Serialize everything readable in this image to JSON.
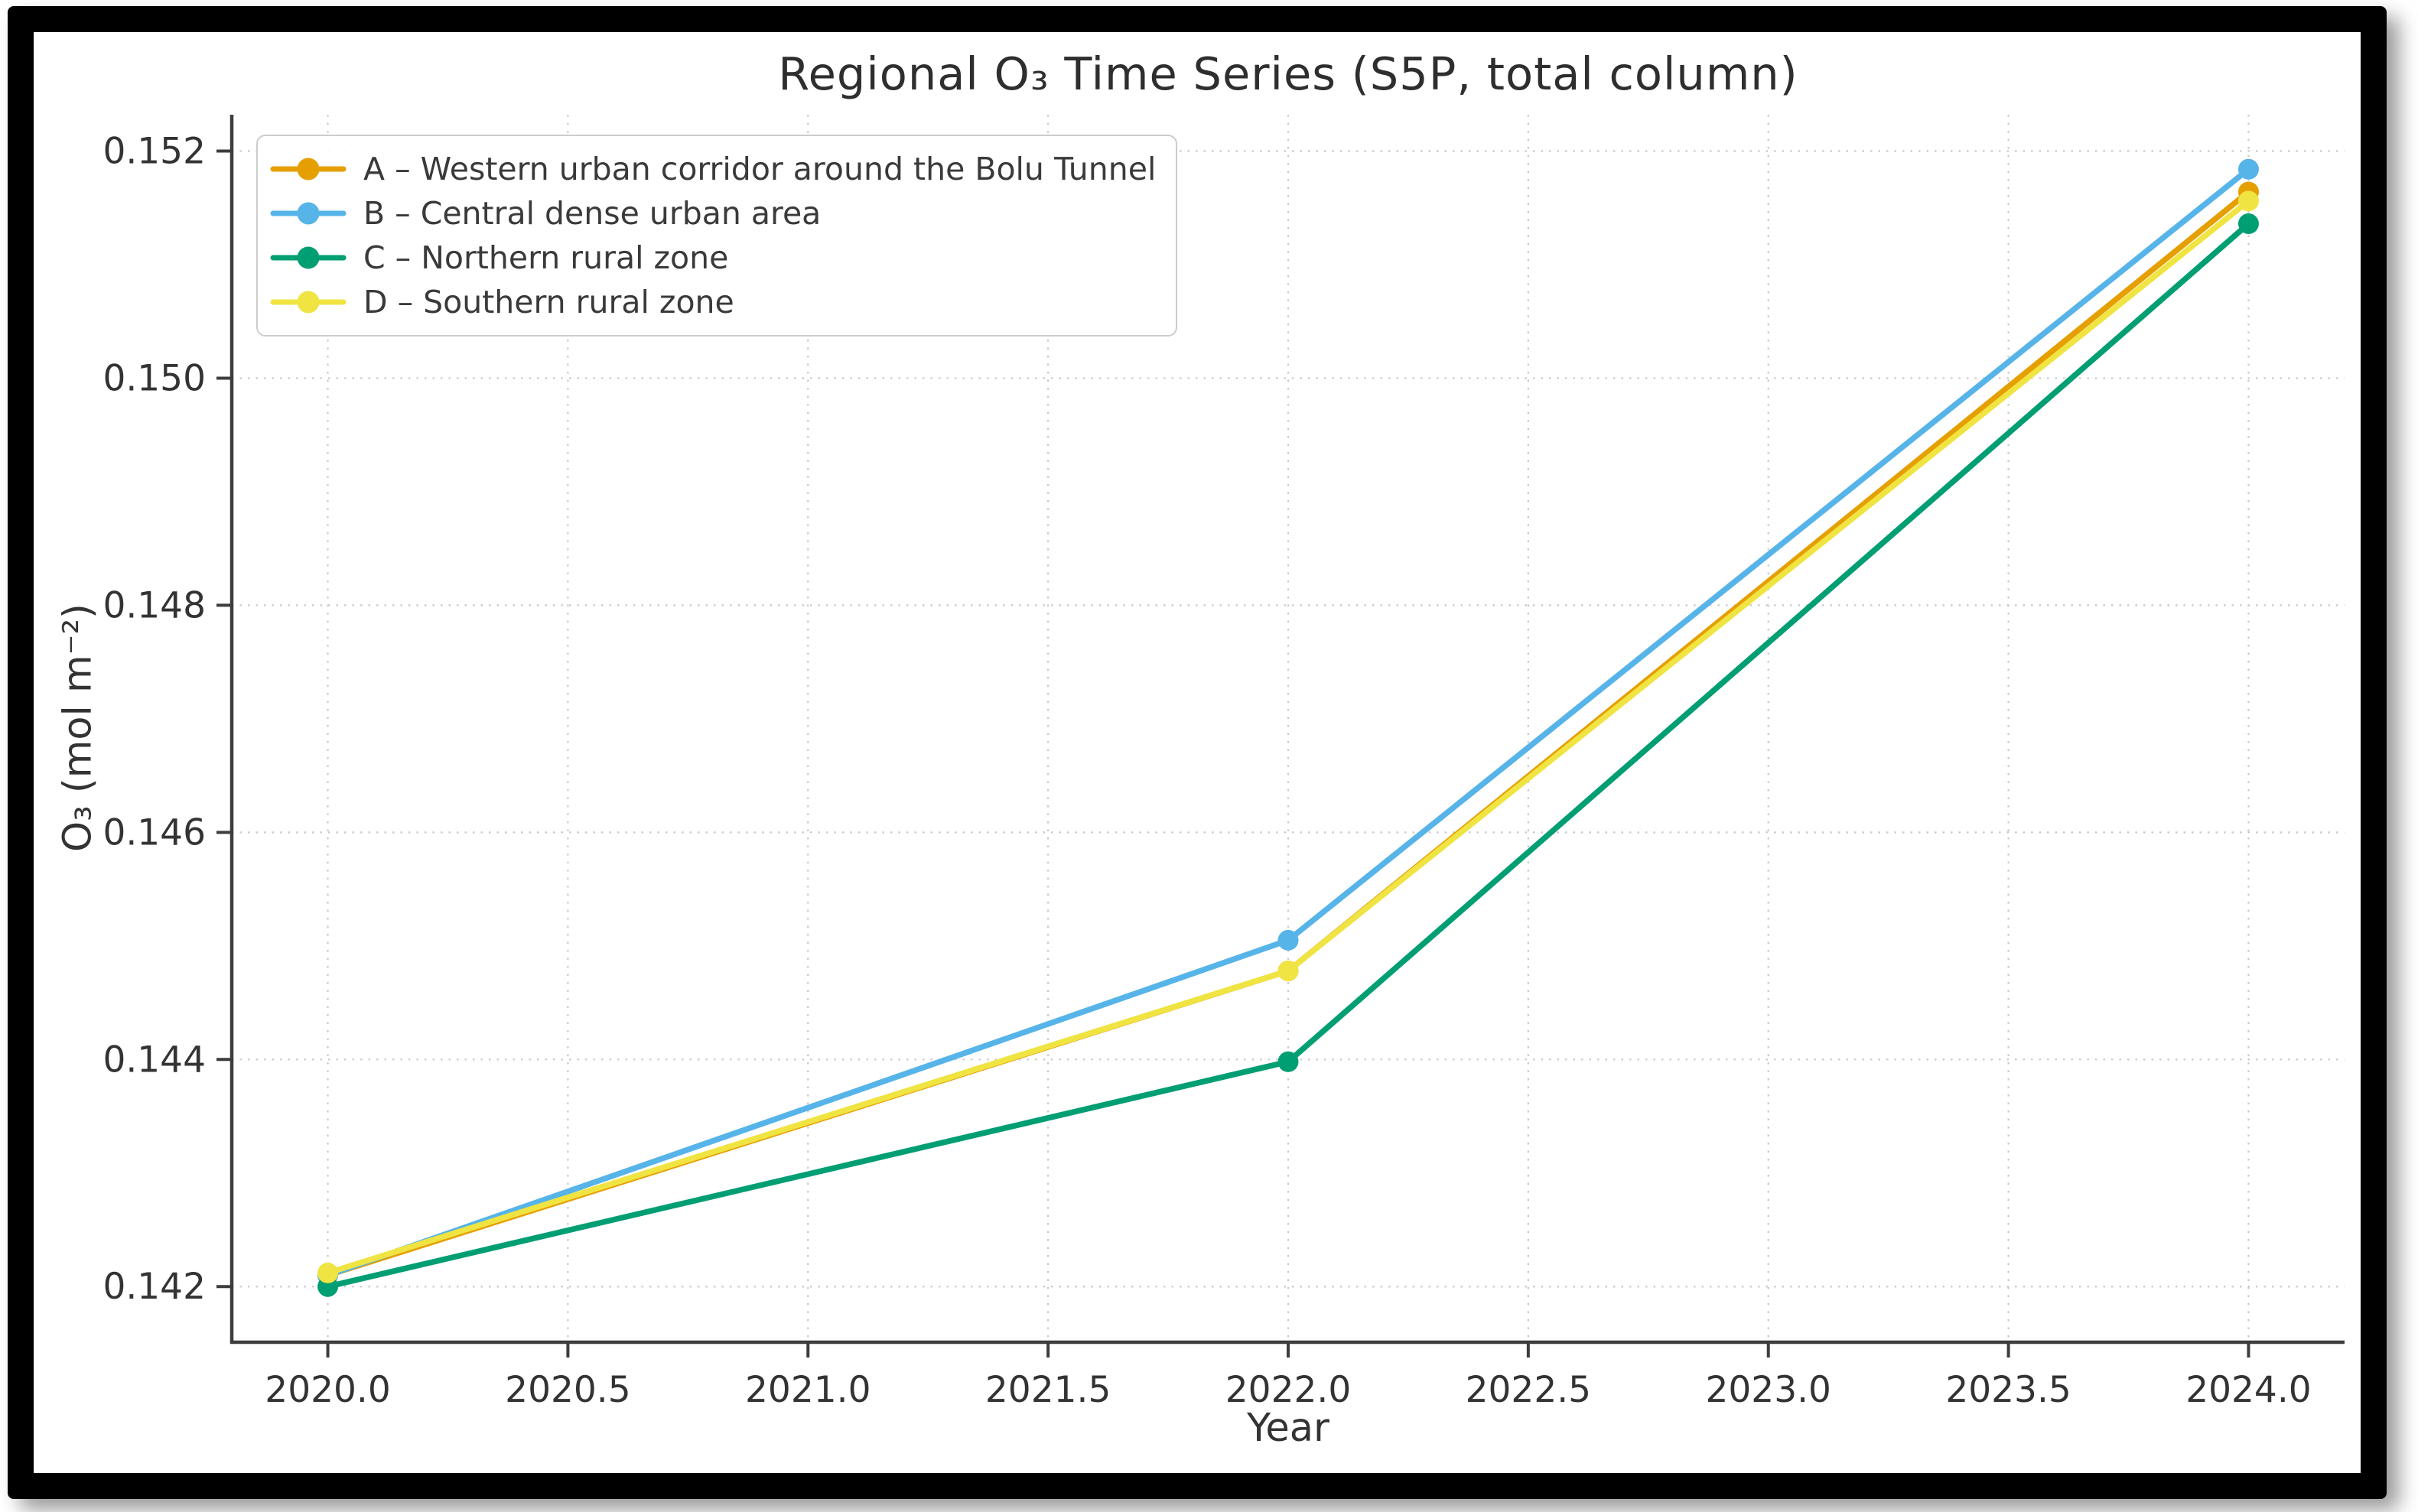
{
  "chart_data": {
    "type": "line",
    "title": "Regional O₃ Time Series (S5P, total column)",
    "xlabel": "Year",
    "ylabel": "O₃ (mol m⁻²)",
    "x": [
      2020,
      2022,
      2024
    ],
    "series": [
      {
        "id": "A",
        "label": "A – Western urban corridor around the Bolu Tunnel",
        "color": "#E69F00",
        "values": [
          0.1421,
          0.14478,
          0.15164
        ]
      },
      {
        "id": "B",
        "label": "B – Central dense urban area",
        "color": "#56B4E9",
        "values": [
          0.1421,
          0.14505,
          0.15184
        ]
      },
      {
        "id": "C",
        "label": "C – Northern rural zone",
        "color": "#009E73",
        "values": [
          0.142,
          0.14398,
          0.15136
        ]
      },
      {
        "id": "D",
        "label": "D – Southern rural zone",
        "color": "#F0E442",
        "values": [
          0.14212,
          0.14478,
          0.15156
        ]
      }
    ],
    "xticks": {
      "values": [
        2020.0,
        2020.5,
        2021.0,
        2021.5,
        2022.0,
        2022.5,
        2023.0,
        2023.5,
        2024.0
      ],
      "labels": [
        "2020.0",
        "2020.5",
        "2021.0",
        "2021.5",
        "2022.0",
        "2022.5",
        "2023.0",
        "2023.5",
        "2024.0"
      ]
    },
    "yticks": {
      "values": [
        0.142,
        0.144,
        0.146,
        0.148,
        0.15,
        0.152
      ],
      "labels": [
        "0.142",
        "0.144",
        "0.146",
        "0.148",
        "0.150",
        "0.152"
      ]
    },
    "xlim": [
      2019.8,
      2024.2
    ],
    "ylim": [
      0.14151,
      0.15232
    ],
    "grid": true,
    "legend_position": "upper left",
    "style": {
      "grid_color": "#c9c9c9",
      "spine_color": "#3d3d3d",
      "text_color": "#333333",
      "frame_color": "#000000",
      "background": "#ffffff"
    }
  }
}
